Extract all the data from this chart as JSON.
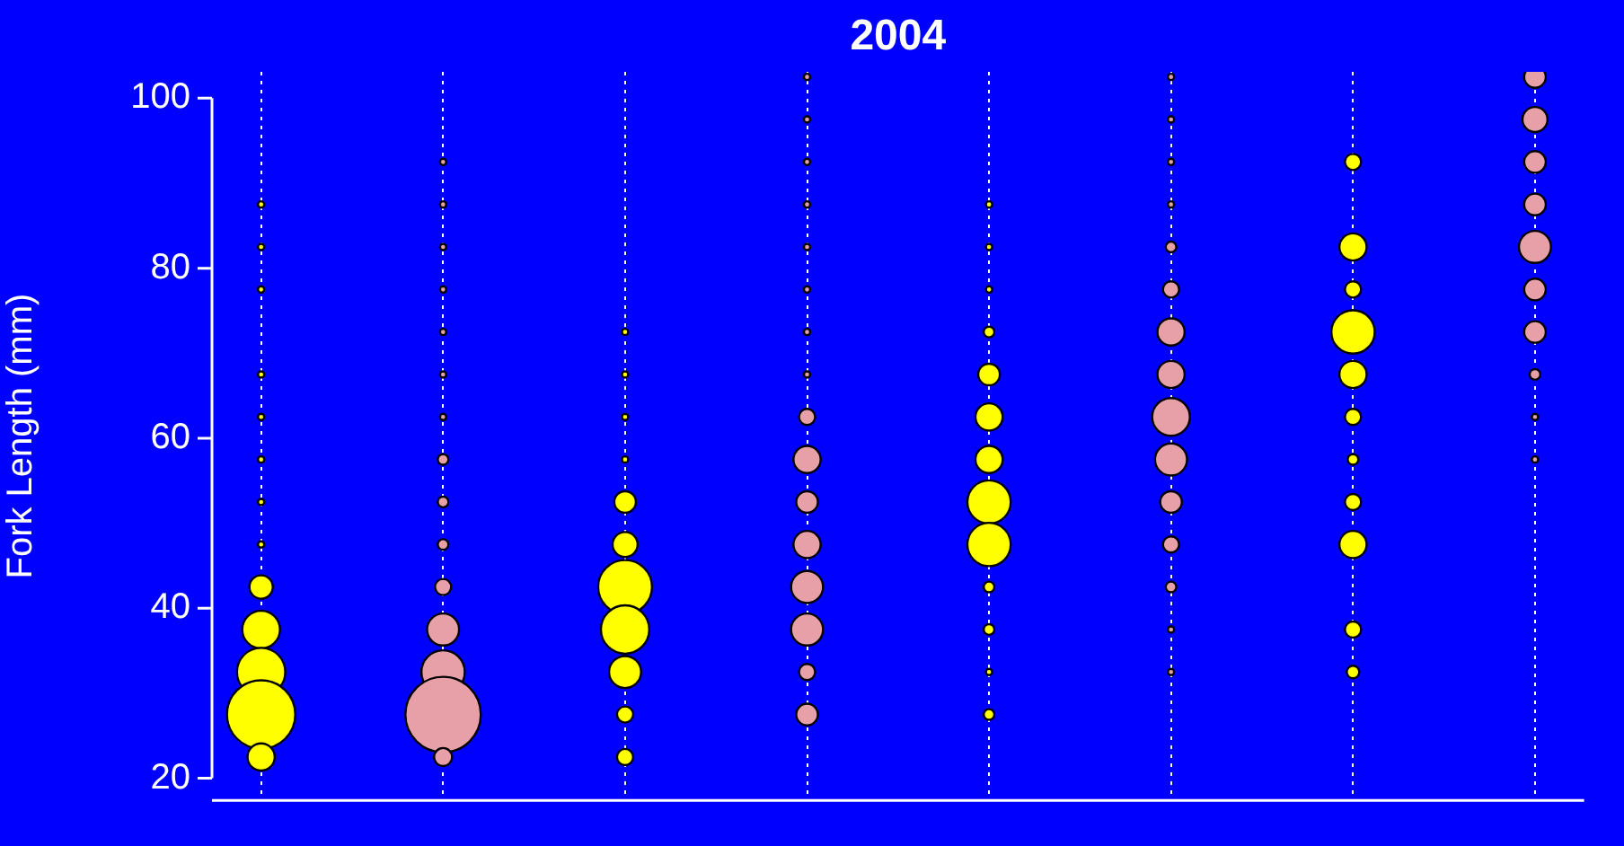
{
  "chart_data": {
    "type": "bubble",
    "title": "2004",
    "ylabel": "Fork Length (mm)",
    "categories": [
      null,
      null,
      null,
      null,
      null,
      null,
      null,
      null
    ],
    "ylim": [
      17.4,
      103.1
    ],
    "yticks": [
      20,
      40,
      60,
      80,
      100
    ],
    "grid": "x",
    "series": [
      {
        "values": [
          22.5,
          22.5,
          22.5,
          null,
          null,
          null,
          null,
          null
        ],
        "sizes": [
          0.13,
          0.057,
          0.046,
          null,
          null,
          null,
          null,
          null
        ],
        "colors": [
          "#ffff00",
          "#e8a0a8",
          "#ffff00",
          "#e8a0a8",
          "#ffff00",
          "#e8a0a8",
          "#ffff00",
          "#e8a0a8"
        ]
      },
      {
        "values": [
          27.5,
          27.5,
          27.5,
          27.5,
          27.5,
          null,
          null,
          null
        ],
        "sizes": [
          0.82,
          1,
          0.046,
          0.082,
          0.02,
          null,
          null,
          null
        ],
        "colors": [
          "#ffff00",
          "#e8a0a8",
          "#ffff00",
          "#e8a0a8",
          "#ffff00",
          "#e8a0a8",
          "#ffff00",
          "#e8a0a8"
        ]
      },
      {
        "values": [
          32.5,
          32.5,
          32.5,
          32.5,
          32.5,
          32.5,
          32.5,
          null
        ],
        "sizes": [
          0.41,
          0.33,
          0.18,
          0.046,
          0.007,
          0.007,
          0.028,
          null
        ],
        "colors": [
          "#ffff00",
          "#e8a0a8",
          "#ffff00",
          "#e8a0a8",
          "#ffff00",
          "#e8a0a8",
          "#ffff00",
          "#e8a0a8"
        ]
      },
      {
        "values": [
          37.5,
          37.5,
          37.5,
          37.5,
          37.5,
          37.5,
          37.5,
          null
        ],
        "sizes": [
          0.25,
          0.18,
          0.41,
          0.18,
          0.02,
          0.007,
          0.046,
          null
        ],
        "colors": [
          "#ffff00",
          "#e8a0a8",
          "#ffff00",
          "#e8a0a8",
          "#ffff00",
          "#e8a0a8",
          "#ffff00",
          "#e8a0a8"
        ]
      },
      {
        "values": [
          42.5,
          42.5,
          42.5,
          42.5,
          42.5,
          42.5,
          null,
          null
        ],
        "sizes": [
          0.096,
          0.046,
          0.51,
          0.18,
          0.02,
          0.02,
          null,
          null
        ],
        "colors": [
          "#ffff00",
          "#e8a0a8",
          "#ffff00",
          "#e8a0a8",
          "#ffff00",
          "#e8a0a8",
          "#ffff00",
          "#e8a0a8"
        ]
      },
      {
        "values": [
          47.5,
          47.5,
          47.5,
          47.5,
          47.5,
          47.5,
          47.5,
          null
        ],
        "sizes": [
          0.007,
          0.02,
          0.11,
          0.13,
          0.33,
          0.046,
          0.13,
          null
        ],
        "colors": [
          "#ffff00",
          "#e8a0a8",
          "#ffff00",
          "#e8a0a8",
          "#ffff00",
          "#e8a0a8",
          "#ffff00",
          "#e8a0a8"
        ]
      },
      {
        "values": [
          52.5,
          52.5,
          52.5,
          52.5,
          52.5,
          52.5,
          52.5,
          null
        ],
        "sizes": [
          0.007,
          0.02,
          0.082,
          0.082,
          0.33,
          0.082,
          0.046,
          null
        ],
        "colors": [
          "#ffff00",
          "#e8a0a8",
          "#ffff00",
          "#e8a0a8",
          "#ffff00",
          "#e8a0a8",
          "#ffff00",
          "#e8a0a8"
        ]
      },
      {
        "values": [
          57.5,
          57.5,
          57.5,
          57.5,
          57.5,
          57.5,
          57.5,
          57.5
        ],
        "sizes": [
          0.007,
          0.02,
          0.007,
          0.13,
          0.13,
          0.18,
          0.02,
          0.007
        ],
        "colors": [
          "#ffff00",
          "#e8a0a8",
          "#ffff00",
          "#e8a0a8",
          "#ffff00",
          "#e8a0a8",
          "#ffff00",
          "#e8a0a8"
        ]
      },
      {
        "values": [
          62.5,
          62.5,
          62.5,
          62.5,
          62.5,
          62.5,
          62.5,
          62.5
        ],
        "sizes": [
          0.007,
          0.007,
          0.007,
          0.046,
          0.13,
          0.25,
          0.046,
          0.007
        ],
        "colors": [
          "#ffff00",
          "#e8a0a8",
          "#ffff00",
          "#e8a0a8",
          "#ffff00",
          "#e8a0a8",
          "#ffff00",
          "#e8a0a8"
        ]
      },
      {
        "values": [
          67.5,
          67.5,
          67.5,
          67.5,
          67.5,
          67.5,
          67.5,
          67.5
        ],
        "sizes": [
          0.007,
          0.007,
          0.007,
          0.007,
          0.082,
          0.13,
          0.13,
          0.02
        ],
        "colors": [
          "#ffff00",
          "#e8a0a8",
          "#ffff00",
          "#e8a0a8",
          "#ffff00",
          "#e8a0a8",
          "#ffff00",
          "#e8a0a8"
        ]
      },
      {
        "values": [
          null,
          72.5,
          72.5,
          72.5,
          72.5,
          72.5,
          72.5,
          72.5
        ],
        "sizes": [
          null,
          0.007,
          0.007,
          0.007,
          0.02,
          0.13,
          0.33,
          0.082
        ],
        "colors": [
          "#ffff00",
          "#e8a0a8",
          "#ffff00",
          "#e8a0a8",
          "#ffff00",
          "#e8a0a8",
          "#ffff00",
          "#e8a0a8"
        ]
      },
      {
        "values": [
          77.5,
          77.5,
          null,
          77.5,
          77.5,
          77.5,
          77.5,
          77.5
        ],
        "sizes": [
          0.007,
          0.007,
          null,
          0.007,
          0.007,
          0.046,
          0.046,
          0.082
        ],
        "colors": [
          "#ffff00",
          "#e8a0a8",
          "#ffff00",
          "#e8a0a8",
          "#ffff00",
          "#e8a0a8",
          "#ffff00",
          "#e8a0a8"
        ]
      },
      {
        "values": [
          82.5,
          82.5,
          null,
          82.5,
          82.5,
          82.5,
          82.5,
          82.5
        ],
        "sizes": [
          0.007,
          0.007,
          null,
          0.007,
          0.007,
          0.02,
          0.13,
          0.18
        ],
        "colors": [
          "#ffff00",
          "#e8a0a8",
          "#ffff00",
          "#e8a0a8",
          "#ffff00",
          "#e8a0a8",
          "#ffff00",
          "#e8a0a8"
        ]
      },
      {
        "values": [
          87.5,
          87.5,
          null,
          87.5,
          87.5,
          87.5,
          null,
          87.5
        ],
        "sizes": [
          0.007,
          0.007,
          null,
          0.007,
          0.007,
          0.007,
          null,
          0.082
        ],
        "colors": [
          "#ffff00",
          "#e8a0a8",
          "#ffff00",
          "#e8a0a8",
          "#ffff00",
          "#e8a0a8",
          "#ffff00",
          "#e8a0a8"
        ]
      },
      {
        "values": [
          null,
          92.5,
          null,
          92.5,
          null,
          92.5,
          92.5,
          92.5
        ],
        "sizes": [
          null,
          0.007,
          null,
          0.007,
          null,
          0.007,
          0.046,
          0.082
        ],
        "colors": [
          "#ffff00",
          "#e8a0a8",
          "#ffff00",
          "#e8a0a8",
          "#ffff00",
          "#e8a0a8",
          "#ffff00",
          "#e8a0a8"
        ]
      },
      {
        "values": [
          null,
          null,
          null,
          97.5,
          null,
          97.5,
          null,
          97.5
        ],
        "sizes": [
          null,
          null,
          null,
          0.007,
          null,
          0.007,
          null,
          0.11
        ],
        "colors": [
          "#ffff00",
          "#e8a0a8",
          "#ffff00",
          "#e8a0a8",
          "#ffff00",
          "#e8a0a8",
          "#ffff00",
          "#e8a0a8"
        ]
      },
      {
        "values": [
          null,
          null,
          null,
          102.5,
          null,
          102.5,
          null,
          102.5
        ],
        "sizes": [
          null,
          null,
          null,
          0.007,
          null,
          0.007,
          null,
          0.082
        ],
        "colors": [
          "#ffff00",
          "#e8a0a8",
          "#ffff00",
          "#e8a0a8",
          "#ffff00",
          "#e8a0a8",
          "#ffff00",
          "#e8a0a8"
        ]
      }
    ]
  }
}
